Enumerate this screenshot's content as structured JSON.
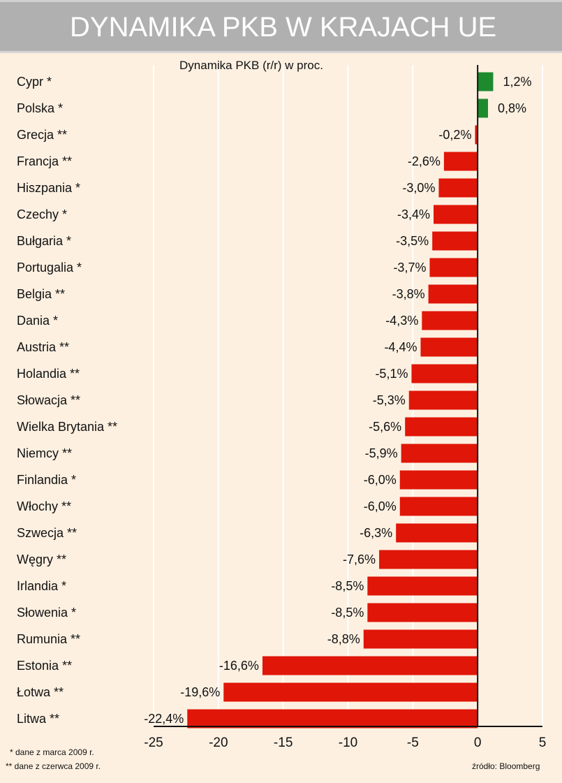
{
  "header": {
    "title": "DYNAMIKA PKB W KRAJACH UE"
  },
  "chart_data": {
    "type": "bar",
    "orientation": "horizontal",
    "title": "DYNAMIKA PKB W KRAJACH UE",
    "subtitle": "Dynamika PKB (r/r) w proc.",
    "xlabel": "",
    "ylabel": "",
    "xlim": [
      -25,
      5
    ],
    "xticks": [
      -25,
      -20,
      -15,
      -10,
      -5,
      0,
      5
    ],
    "grid": true,
    "colors": {
      "positive": "#1e8a2e",
      "negative": "#e01608",
      "grid": "#ffffff",
      "axis": "#111111"
    },
    "categories": [
      "Cypr *",
      "Polska *",
      "Grecja **",
      "Francja **",
      "Hiszpania *",
      "Czechy *",
      "Bułgaria *",
      "Portugalia *",
      "Belgia **",
      "Dania *",
      "Austria **",
      "Holandia **",
      "Słowacja **",
      "Wielka Brytania **",
      "Niemcy **",
      "Finlandia *",
      "Włochy **",
      "Szwecja **",
      "Węgry **",
      "Irlandia *",
      "Słowenia *",
      "Rumunia **",
      "Estonia **",
      "Łotwa **",
      "Litwa **"
    ],
    "values": [
      1.2,
      0.8,
      -0.2,
      -2.6,
      -3.0,
      -3.4,
      -3.5,
      -3.7,
      -3.8,
      -4.3,
      -4.4,
      -5.1,
      -5.3,
      -5.6,
      -5.9,
      -6.0,
      -6.0,
      -6.3,
      -7.6,
      -8.5,
      -8.5,
      -8.8,
      -16.6,
      -19.6,
      -22.4
    ],
    "data_labels": [
      "1,2%",
      "0,8%",
      "-0,2%",
      "-2,6%",
      "-3,0%",
      "-3,4%",
      "-3,5%",
      "-3,7%",
      "-3,8%",
      "-4,3%",
      "-4,4%",
      "-5,1%",
      "-5,3%",
      "-5,6%",
      "-5,9%",
      "-6,0%",
      "-6,0%",
      "-6,3%",
      "-7,6%",
      "-8,5%",
      "-8,5%",
      "-8,8%",
      "-16,6%",
      "-19,6%",
      "-22,4%"
    ],
    "tick_labels": [
      "-25",
      "-20",
      "-15",
      "-10",
      "-5",
      "0",
      "5"
    ]
  },
  "footnotes": {
    "single_star": "* dane z marca 2009 r.",
    "double_star": "** dane z czerwca 2009 r.",
    "source": "źródło: Bloomberg"
  }
}
